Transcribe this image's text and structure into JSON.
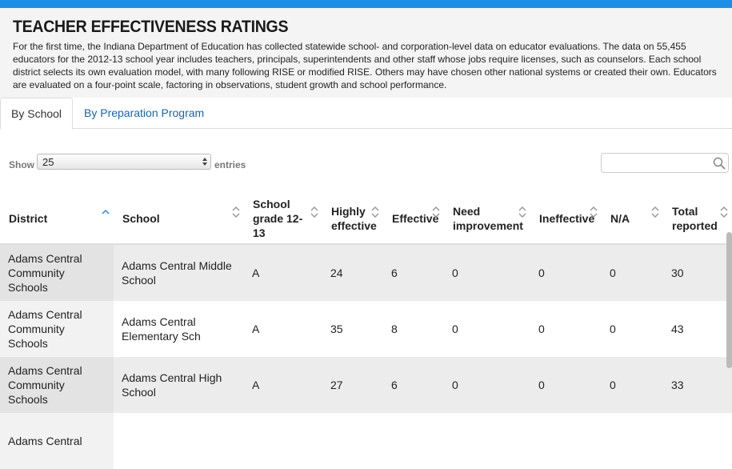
{
  "header": {
    "title": "TEACHER EFFECTIVENESS RATINGS",
    "description": "For the first time, the Indiana Department of Education has collected statewide school- and corporation-level data on educator evaluations. The data on 55,455 educators for the 2012-13 school year includes teachers, principals, superintendents and other staff whose jobs require licenses, such as counselors. Each school district selects its own evaluation model, with many following RISE or modified RISE. Others may have chosen other national systems or created their own. Educators are evaluated on a four-point scale, factoring in observations, student growth and school performance."
  },
  "tabs": [
    "By School",
    "By Preparation Program"
  ],
  "controls": {
    "show_label": "Show",
    "entries_value": "25",
    "entries_label": "entries"
  },
  "table": {
    "columns": [
      "District",
      "School",
      "School grade 12-13",
      "Highly effective",
      "Effective",
      "Need improvement",
      "Ineffective",
      "N/A",
      "Total reported"
    ],
    "rows": [
      [
        "Adams Central Community Schools",
        "Adams Central Middle School",
        "A",
        24,
        6,
        0,
        0,
        0,
        30
      ],
      [
        "Adams Central Community Schools",
        "Adams Central Elementary Sch",
        "A",
        35,
        8,
        0,
        0,
        0,
        43
      ],
      [
        "Adams Central Community Schools",
        "Adams Central High School",
        "A",
        27,
        6,
        0,
        0,
        0,
        33
      ],
      [
        "Adams Central"
      ]
    ]
  }
}
